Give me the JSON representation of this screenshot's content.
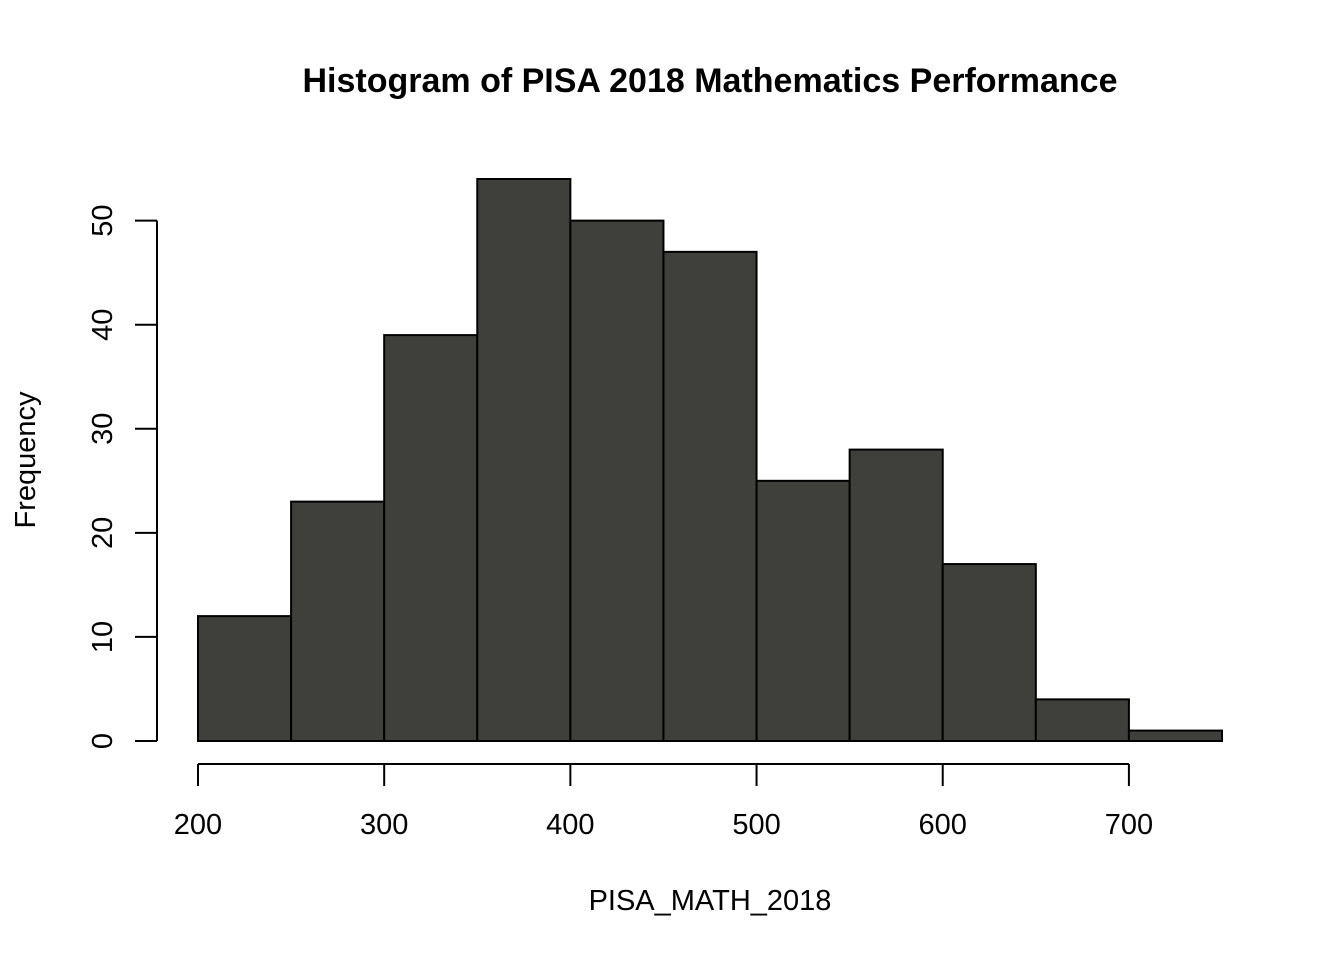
{
  "chart_data": {
    "type": "bar",
    "subtype": "histogram",
    "title": "Histogram of PISA 2018 Mathematics Performance",
    "xlabel": "PISA_MATH_2018",
    "ylabel": "Frequency",
    "bins": [
      {
        "from": 200,
        "to": 250,
        "count": 12
      },
      {
        "from": 250,
        "to": 300,
        "count": 23
      },
      {
        "from": 300,
        "to": 350,
        "count": 39
      },
      {
        "from": 350,
        "to": 400,
        "count": 54
      },
      {
        "from": 400,
        "to": 450,
        "count": 50
      },
      {
        "from": 450,
        "to": 500,
        "count": 47
      },
      {
        "from": 500,
        "to": 550,
        "count": 25
      },
      {
        "from": 550,
        "to": 600,
        "count": 28
      },
      {
        "from": 600,
        "to": 650,
        "count": 17
      },
      {
        "from": 650,
        "to": 700,
        "count": 4
      },
      {
        "from": 700,
        "to": 750,
        "count": 1
      }
    ],
    "x_ticks": [
      "200",
      "300",
      "400",
      "500",
      "600",
      "700"
    ],
    "y_ticks": [
      "0",
      "10",
      "20",
      "30",
      "40",
      "50"
    ],
    "xlim": [
      200,
      750
    ],
    "ylim": [
      0,
      54
    ],
    "grid": false,
    "bar_color": "#3f3f3b"
  }
}
